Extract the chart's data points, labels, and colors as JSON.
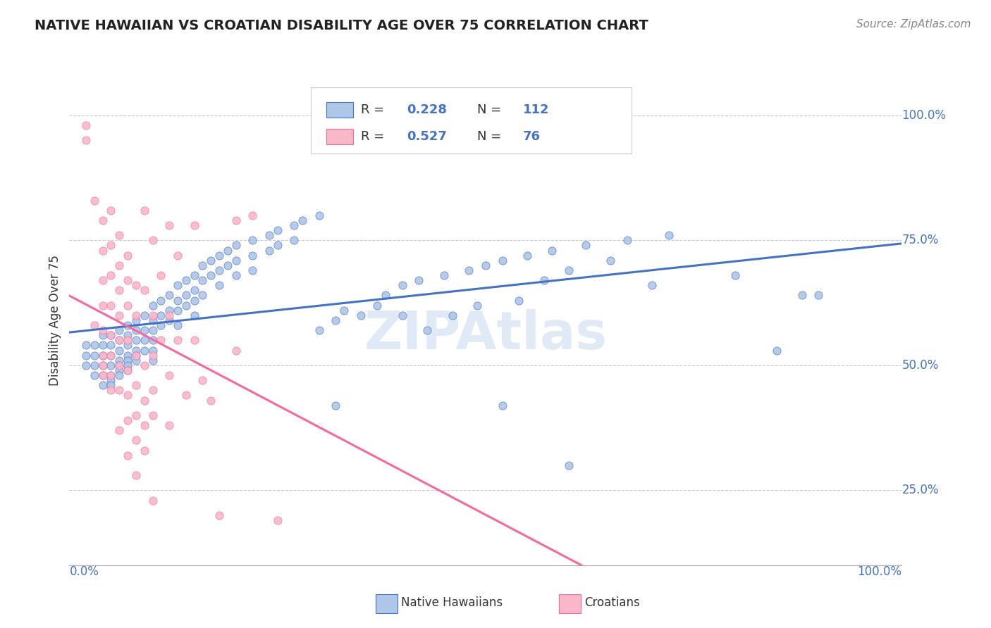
{
  "title": "NATIVE HAWAIIAN VS CROATIAN DISABILITY AGE OVER 75 CORRELATION CHART",
  "source": "Source: ZipAtlas.com",
  "ylabel": "Disability Age Over 75",
  "yticks": [
    0.25,
    0.5,
    0.75,
    1.0
  ],
  "ytick_labels": [
    "25.0%",
    "50.0%",
    "75.0%",
    "100.0%"
  ],
  "xrange": [
    0.0,
    1.0
  ],
  "yrange": [
    0.1,
    1.08
  ],
  "blue_color": "#4472c4",
  "pink_color": "#f768a1",
  "blue_fill": "#aec6e8",
  "pink_fill": "#f9b8c8",
  "watermark": "ZIPAtlas",
  "background_color": "#ffffff",
  "grid_color": "#c8c8c8",
  "blue_scatter": [
    [
      0.02,
      0.54
    ],
    [
      0.02,
      0.52
    ],
    [
      0.02,
      0.5
    ],
    [
      0.03,
      0.54
    ],
    [
      0.03,
      0.52
    ],
    [
      0.03,
      0.5
    ],
    [
      0.03,
      0.48
    ],
    [
      0.04,
      0.56
    ],
    [
      0.04,
      0.54
    ],
    [
      0.04,
      0.52
    ],
    [
      0.04,
      0.5
    ],
    [
      0.04,
      0.48
    ],
    [
      0.04,
      0.46
    ],
    [
      0.05,
      0.56
    ],
    [
      0.05,
      0.54
    ],
    [
      0.05,
      0.52
    ],
    [
      0.05,
      0.5
    ],
    [
      0.05,
      0.48
    ],
    [
      0.05,
      0.47
    ],
    [
      0.05,
      0.46
    ],
    [
      0.06,
      0.57
    ],
    [
      0.06,
      0.55
    ],
    [
      0.06,
      0.53
    ],
    [
      0.06,
      0.51
    ],
    [
      0.06,
      0.5
    ],
    [
      0.06,
      0.49
    ],
    [
      0.06,
      0.48
    ],
    [
      0.07,
      0.58
    ],
    [
      0.07,
      0.56
    ],
    [
      0.07,
      0.54
    ],
    [
      0.07,
      0.52
    ],
    [
      0.07,
      0.51
    ],
    [
      0.07,
      0.5
    ],
    [
      0.07,
      0.49
    ],
    [
      0.08,
      0.59
    ],
    [
      0.08,
      0.57
    ],
    [
      0.08,
      0.55
    ],
    [
      0.08,
      0.53
    ],
    [
      0.08,
      0.52
    ],
    [
      0.08,
      0.51
    ],
    [
      0.09,
      0.6
    ],
    [
      0.09,
      0.57
    ],
    [
      0.09,
      0.55
    ],
    [
      0.09,
      0.53
    ],
    [
      0.1,
      0.62
    ],
    [
      0.1,
      0.59
    ],
    [
      0.1,
      0.57
    ],
    [
      0.1,
      0.55
    ],
    [
      0.1,
      0.53
    ],
    [
      0.1,
      0.51
    ],
    [
      0.11,
      0.63
    ],
    [
      0.11,
      0.6
    ],
    [
      0.11,
      0.58
    ],
    [
      0.12,
      0.64
    ],
    [
      0.12,
      0.61
    ],
    [
      0.12,
      0.59
    ],
    [
      0.13,
      0.66
    ],
    [
      0.13,
      0.63
    ],
    [
      0.13,
      0.61
    ],
    [
      0.13,
      0.58
    ],
    [
      0.14,
      0.67
    ],
    [
      0.14,
      0.64
    ],
    [
      0.14,
      0.62
    ],
    [
      0.15,
      0.68
    ],
    [
      0.15,
      0.65
    ],
    [
      0.15,
      0.63
    ],
    [
      0.15,
      0.6
    ],
    [
      0.16,
      0.7
    ],
    [
      0.16,
      0.67
    ],
    [
      0.16,
      0.64
    ],
    [
      0.17,
      0.71
    ],
    [
      0.17,
      0.68
    ],
    [
      0.18,
      0.72
    ],
    [
      0.18,
      0.69
    ],
    [
      0.18,
      0.66
    ],
    [
      0.19,
      0.73
    ],
    [
      0.19,
      0.7
    ],
    [
      0.2,
      0.74
    ],
    [
      0.2,
      0.71
    ],
    [
      0.2,
      0.68
    ],
    [
      0.22,
      0.75
    ],
    [
      0.22,
      0.72
    ],
    [
      0.22,
      0.69
    ],
    [
      0.24,
      0.76
    ],
    [
      0.24,
      0.73
    ],
    [
      0.25,
      0.77
    ],
    [
      0.25,
      0.74
    ],
    [
      0.27,
      0.78
    ],
    [
      0.27,
      0.75
    ],
    [
      0.28,
      0.79
    ],
    [
      0.3,
      0.8
    ],
    [
      0.3,
      0.57
    ],
    [
      0.32,
      0.59
    ],
    [
      0.32,
      0.42
    ],
    [
      0.33,
      0.61
    ],
    [
      0.35,
      0.6
    ],
    [
      0.37,
      0.62
    ],
    [
      0.38,
      0.64
    ],
    [
      0.4,
      0.66
    ],
    [
      0.4,
      0.6
    ],
    [
      0.42,
      0.67
    ],
    [
      0.43,
      0.57
    ],
    [
      0.45,
      0.68
    ],
    [
      0.46,
      0.6
    ],
    [
      0.48,
      0.69
    ],
    [
      0.49,
      0.62
    ],
    [
      0.5,
      0.7
    ],
    [
      0.52,
      0.71
    ],
    [
      0.52,
      0.42
    ],
    [
      0.54,
      0.63
    ],
    [
      0.55,
      0.72
    ],
    [
      0.57,
      0.67
    ],
    [
      0.58,
      0.73
    ],
    [
      0.6,
      0.69
    ],
    [
      0.6,
      0.3
    ],
    [
      0.62,
      0.74
    ],
    [
      0.65,
      0.71
    ],
    [
      0.67,
      0.75
    ],
    [
      0.7,
      0.66
    ],
    [
      0.72,
      0.76
    ],
    [
      0.8,
      0.68
    ],
    [
      0.85,
      0.53
    ],
    [
      0.88,
      0.64
    ],
    [
      0.9,
      0.64
    ]
  ],
  "pink_scatter": [
    [
      0.02,
      0.98
    ],
    [
      0.02,
      0.95
    ],
    [
      0.03,
      0.83
    ],
    [
      0.03,
      0.58
    ],
    [
      0.04,
      0.79
    ],
    [
      0.04,
      0.73
    ],
    [
      0.04,
      0.67
    ],
    [
      0.04,
      0.62
    ],
    [
      0.04,
      0.57
    ],
    [
      0.04,
      0.52
    ],
    [
      0.04,
      0.5
    ],
    [
      0.04,
      0.48
    ],
    [
      0.05,
      0.81
    ],
    [
      0.05,
      0.74
    ],
    [
      0.05,
      0.68
    ],
    [
      0.05,
      0.62
    ],
    [
      0.05,
      0.56
    ],
    [
      0.05,
      0.52
    ],
    [
      0.05,
      0.48
    ],
    [
      0.05,
      0.45
    ],
    [
      0.06,
      0.76
    ],
    [
      0.06,
      0.7
    ],
    [
      0.06,
      0.65
    ],
    [
      0.06,
      0.6
    ],
    [
      0.06,
      0.55
    ],
    [
      0.06,
      0.5
    ],
    [
      0.06,
      0.45
    ],
    [
      0.06,
      0.37
    ],
    [
      0.07,
      0.72
    ],
    [
      0.07,
      0.67
    ],
    [
      0.07,
      0.62
    ],
    [
      0.07,
      0.55
    ],
    [
      0.07,
      0.49
    ],
    [
      0.07,
      0.44
    ],
    [
      0.07,
      0.39
    ],
    [
      0.07,
      0.32
    ],
    [
      0.08,
      0.66
    ],
    [
      0.08,
      0.6
    ],
    [
      0.08,
      0.52
    ],
    [
      0.08,
      0.46
    ],
    [
      0.08,
      0.4
    ],
    [
      0.08,
      0.35
    ],
    [
      0.08,
      0.28
    ],
    [
      0.09,
      0.81
    ],
    [
      0.09,
      0.65
    ],
    [
      0.09,
      0.5
    ],
    [
      0.09,
      0.43
    ],
    [
      0.09,
      0.38
    ],
    [
      0.09,
      0.33
    ],
    [
      0.1,
      0.75
    ],
    [
      0.1,
      0.6
    ],
    [
      0.1,
      0.52
    ],
    [
      0.1,
      0.45
    ],
    [
      0.1,
      0.4
    ],
    [
      0.1,
      0.23
    ],
    [
      0.11,
      0.68
    ],
    [
      0.11,
      0.55
    ],
    [
      0.12,
      0.78
    ],
    [
      0.12,
      0.6
    ],
    [
      0.12,
      0.48
    ],
    [
      0.12,
      0.38
    ],
    [
      0.13,
      0.72
    ],
    [
      0.13,
      0.55
    ],
    [
      0.14,
      0.44
    ],
    [
      0.15,
      0.78
    ],
    [
      0.15,
      0.55
    ],
    [
      0.16,
      0.47
    ],
    [
      0.17,
      0.43
    ],
    [
      0.18,
      0.2
    ],
    [
      0.2,
      0.79
    ],
    [
      0.2,
      0.53
    ],
    [
      0.22,
      0.8
    ],
    [
      0.25,
      0.19
    ]
  ]
}
